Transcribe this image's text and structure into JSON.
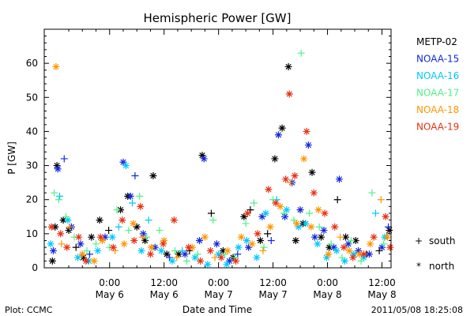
{
  "chart_data": {
    "type": "scatter",
    "title": "Hemispheric Power [GW]",
    "ylabel": "P [GW]",
    "xlabel": "Date and Time",
    "ylim": [
      0,
      70
    ],
    "yticks": [
      0,
      10,
      20,
      30,
      40,
      50,
      60
    ],
    "xlim_hours": [
      -14.4,
      62.0
    ],
    "x_units": "hours from 2011/05/06 00:00 UT",
    "xticks": [
      {
        "hour": 0,
        "time": "0:00",
        "date": "May 6"
      },
      {
        "hour": 12,
        "time": "12:00",
        "date": "May 6"
      },
      {
        "hour": 24,
        "time": "0:00",
        "date": "May 7"
      },
      {
        "hour": 36,
        "time": "12:00",
        "date": "May 7"
      },
      {
        "hour": 48,
        "time": "0:00",
        "date": "May 8"
      },
      {
        "hour": 60,
        "time": "12:00",
        "date": "May 8"
      }
    ],
    "markers": {
      "south": "+",
      "north": "*"
    },
    "marker_legend": [
      {
        "symbol": "+",
        "label": "south"
      },
      {
        "symbol": "*",
        "label": "north"
      }
    ],
    "series": [
      {
        "name": "METP-02",
        "color": "#000000",
        "points": [
          [
            -12.6,
            2,
            "north"
          ],
          [
            -12.0,
            12,
            "north"
          ],
          [
            -11.6,
            30,
            "north"
          ],
          [
            -10.2,
            14,
            "north"
          ],
          [
            -9.0,
            11,
            "north"
          ],
          [
            -7.4,
            6,
            "south"
          ],
          [
            -5.8,
            3,
            "north"
          ],
          [
            -4.0,
            9,
            "north"
          ],
          [
            -2.2,
            14,
            "north"
          ],
          [
            -0.2,
            11,
            "south"
          ],
          [
            2.4,
            17,
            "north"
          ],
          [
            4.0,
            21,
            "north"
          ],
          [
            6.0,
            12,
            "north"
          ],
          [
            7.8,
            8,
            "north"
          ],
          [
            9.6,
            27,
            "north"
          ],
          [
            12.6,
            4,
            "north"
          ],
          [
            15.2,
            4,
            "north"
          ],
          [
            17.6,
            5,
            "south"
          ],
          [
            20.4,
            33,
            "north"
          ],
          [
            22.4,
            16,
            "south"
          ],
          [
            25.0,
            5,
            "north"
          ],
          [
            27.2,
            3,
            "north"
          ],
          [
            29.6,
            15,
            "north"
          ],
          [
            31.0,
            17,
            "south"
          ],
          [
            33.2,
            8,
            "north"
          ],
          [
            34.8,
            10,
            "south"
          ],
          [
            36.4,
            32,
            "north"
          ],
          [
            38.0,
            41,
            "north"
          ],
          [
            39.4,
            59,
            "north"
          ],
          [
            41.0,
            8,
            "north"
          ],
          [
            42.6,
            13,
            "north"
          ],
          [
            44.6,
            28,
            "north"
          ],
          [
            46.6,
            9,
            "north"
          ],
          [
            48.4,
            6,
            "north"
          ],
          [
            50.2,
            20,
            "south"
          ],
          [
            52.0,
            9,
            "north"
          ],
          [
            54.2,
            8,
            "north"
          ],
          [
            56.6,
            4,
            "south"
          ],
          [
            59.4,
            5,
            "south"
          ],
          [
            61.6,
            11,
            "north"
          ]
        ]
      },
      {
        "name": "NOAA-15",
        "color": "#1428dc",
        "points": [
          [
            -12.4,
            5,
            "north"
          ],
          [
            -11.4,
            29,
            "north"
          ],
          [
            -10.0,
            32,
            "south"
          ],
          [
            -8.4,
            12,
            "north"
          ],
          [
            -6.4,
            7,
            "north"
          ],
          [
            -4.4,
            4,
            "south"
          ],
          [
            -1.0,
            9,
            "north"
          ],
          [
            3.0,
            31,
            "north"
          ],
          [
            4.6,
            21,
            "north"
          ],
          [
            5.6,
            27,
            "south"
          ],
          [
            7.4,
            10,
            "north"
          ],
          [
            10.0,
            6,
            "north"
          ],
          [
            13.2,
            3,
            "south"
          ],
          [
            16.6,
            4,
            "north"
          ],
          [
            19.8,
            8,
            "north"
          ],
          [
            20.8,
            32,
            "north"
          ],
          [
            23.6,
            7,
            "north"
          ],
          [
            26.4,
            2,
            "north"
          ],
          [
            28.2,
            4,
            "south"
          ],
          [
            30.6,
            6,
            "north"
          ],
          [
            33.6,
            15,
            "north"
          ],
          [
            35.6,
            8,
            "south"
          ],
          [
            37.2,
            39,
            "north"
          ],
          [
            38.6,
            15,
            "north"
          ],
          [
            40.2,
            25,
            "north"
          ],
          [
            42.0,
            17,
            "north"
          ],
          [
            43.8,
            36,
            "north"
          ],
          [
            45.2,
            9,
            "north"
          ],
          [
            47.2,
            11,
            "north"
          ],
          [
            49.4,
            6,
            "north"
          ],
          [
            50.6,
            26,
            "north"
          ],
          [
            52.6,
            7,
            "north"
          ],
          [
            54.8,
            5,
            "north"
          ],
          [
            57.2,
            4,
            "north"
          ],
          [
            60.0,
            6,
            "north"
          ],
          [
            61.4,
            12,
            "south"
          ]
        ]
      },
      {
        "name": "NOAA-16",
        "color": "#00c8ff",
        "points": [
          [
            -13.0,
            7,
            "north"
          ],
          [
            -11.0,
            21,
            "south"
          ],
          [
            -9.2,
            14,
            "north"
          ],
          [
            -7.0,
            3,
            "north"
          ],
          [
            -4.6,
            2,
            "north"
          ],
          [
            -2.6,
            5,
            "north"
          ],
          [
            0.6,
            9,
            "north"
          ],
          [
            2.0,
            12,
            "south"
          ],
          [
            3.6,
            30,
            "north"
          ],
          [
            5.0,
            19,
            "south"
          ],
          [
            7.0,
            5,
            "north"
          ],
          [
            8.6,
            14,
            "south"
          ],
          [
            11.4,
            5,
            "north"
          ],
          [
            13.8,
            2,
            "north"
          ],
          [
            16.0,
            5,
            "south"
          ],
          [
            18.8,
            3,
            "north"
          ],
          [
            21.6,
            1,
            "north"
          ],
          [
            24.0,
            4,
            "north"
          ],
          [
            25.8,
            1,
            "north"
          ],
          [
            28.4,
            6,
            "north"
          ],
          [
            30.2,
            8,
            "north"
          ],
          [
            32.4,
            3,
            "north"
          ],
          [
            34.4,
            16,
            "north"
          ],
          [
            36.8,
            20,
            "south"
          ],
          [
            39.0,
            17,
            "north"
          ],
          [
            41.6,
            12,
            "north"
          ],
          [
            43.2,
            13,
            "north"
          ],
          [
            45.8,
            7,
            "north"
          ],
          [
            47.8,
            3,
            "north"
          ],
          [
            50.0,
            5,
            "north"
          ],
          [
            51.8,
            2,
            "north"
          ],
          [
            53.8,
            4,
            "north"
          ],
          [
            56.0,
            3,
            "north"
          ],
          [
            58.6,
            16,
            "south"
          ],
          [
            60.6,
            9,
            "north"
          ]
        ]
      },
      {
        "name": "NOAA-17",
        "color": "#50f08c",
        "points": [
          [
            -12.2,
            22,
            "south"
          ],
          [
            -11.2,
            20,
            "south"
          ],
          [
            -9.6,
            15,
            "south"
          ],
          [
            -7.8,
            9,
            "south"
          ],
          [
            -5.0,
            5,
            "south"
          ],
          [
            -3.0,
            7,
            "south"
          ],
          [
            0.0,
            6,
            "south"
          ],
          [
            1.6,
            17,
            "south"
          ],
          [
            4.2,
            11,
            "south"
          ],
          [
            6.6,
            21,
            "south"
          ],
          [
            8.2,
            9,
            "south"
          ],
          [
            11.0,
            11,
            "south"
          ],
          [
            14.4,
            5,
            "south"
          ],
          [
            17.0,
            2,
            "south"
          ],
          [
            19.4,
            4,
            "south"
          ],
          [
            22.8,
            14,
            "south"
          ],
          [
            25.4,
            4,
            "south"
          ],
          [
            27.6,
            3,
            "south"
          ],
          [
            30.0,
            13,
            "south"
          ],
          [
            31.8,
            19,
            "south"
          ],
          [
            34.0,
            6,
            "south"
          ],
          [
            36.0,
            20,
            "south"
          ],
          [
            38.4,
            16,
            "south"
          ],
          [
            40.6,
            14,
            "south"
          ],
          [
            42.2,
            63,
            "south"
          ],
          [
            44.0,
            16,
            "south"
          ],
          [
            46.2,
            12,
            "south"
          ],
          [
            48.8,
            7,
            "south"
          ],
          [
            51.2,
            3,
            "south"
          ],
          [
            53.2,
            8,
            "south"
          ],
          [
            55.4,
            2,
            "south"
          ],
          [
            57.8,
            22,
            "south"
          ],
          [
            60.4,
            7,
            "south"
          ]
        ]
      },
      {
        "name": "NOAA-18",
        "color": "#ff9600",
        "points": [
          [
            -11.8,
            59,
            "north"
          ],
          [
            -10.6,
            7,
            "south"
          ],
          [
            -8.8,
            12,
            "south"
          ],
          [
            -6.0,
            4,
            "north"
          ],
          [
            -3.4,
            2,
            "north"
          ],
          [
            -1.6,
            8,
            "north"
          ],
          [
            1.2,
            5,
            "south"
          ],
          [
            3.2,
            7,
            "north"
          ],
          [
            5.2,
            13,
            "north"
          ],
          [
            7.2,
            9,
            "south"
          ],
          [
            9.2,
            6,
            "north"
          ],
          [
            12.0,
            8,
            "north"
          ],
          [
            14.8,
            3,
            "south"
          ],
          [
            18.2,
            6,
            "north"
          ],
          [
            21.0,
            9,
            "north"
          ],
          [
            23.2,
            3,
            "south"
          ],
          [
            26.0,
            5,
            "north"
          ],
          [
            29.0,
            9,
            "north"
          ],
          [
            31.4,
            7,
            "north"
          ],
          [
            33.8,
            5,
            "south"
          ],
          [
            35.4,
            12,
            "north"
          ],
          [
            37.6,
            18,
            "north"
          ],
          [
            39.8,
            25,
            "south"
          ],
          [
            41.2,
            13,
            "north"
          ],
          [
            42.8,
            32,
            "north"
          ],
          [
            44.4,
            12,
            "north"
          ],
          [
            46.0,
            17,
            "north"
          ],
          [
            48.2,
            4,
            "north"
          ],
          [
            50.8,
            9,
            "south"
          ],
          [
            52.8,
            5,
            "north"
          ],
          [
            55.0,
            4,
            "north"
          ],
          [
            57.4,
            7,
            "north"
          ],
          [
            59.8,
            20,
            "south"
          ],
          [
            61.2,
            9,
            "north"
          ]
        ]
      },
      {
        "name": "NOAA-19",
        "color": "#e63214",
        "points": [
          [
            -12.8,
            12,
            "north"
          ],
          [
            -10.8,
            10,
            "north"
          ],
          [
            -9.4,
            6,
            "north"
          ],
          [
            -6.8,
            9,
            "north"
          ],
          [
            -5.2,
            2,
            "north"
          ],
          [
            -2.0,
            9,
            "north"
          ],
          [
            0.8,
            6,
            "north"
          ],
          [
            2.8,
            14,
            "north"
          ],
          [
            5.4,
            8,
            "north"
          ],
          [
            6.8,
            18,
            "north"
          ],
          [
            9.0,
            4,
            "north"
          ],
          [
            11.8,
            7,
            "north"
          ],
          [
            14.2,
            14,
            "north"
          ],
          [
            17.4,
            6,
            "north"
          ],
          [
            20.0,
            2,
            "north"
          ],
          [
            22.2,
            5,
            "north"
          ],
          [
            24.6,
            3,
            "north"
          ],
          [
            27.8,
            2,
            "north"
          ],
          [
            30.4,
            16,
            "north"
          ],
          [
            32.6,
            10,
            "north"
          ],
          [
            35.0,
            23,
            "north"
          ],
          [
            36.6,
            19,
            "north"
          ],
          [
            38.8,
            26,
            "north"
          ],
          [
            39.6,
            51,
            "north"
          ],
          [
            40.8,
            27,
            "north"
          ],
          [
            43.4,
            40,
            "north"
          ],
          [
            45.0,
            22,
            "north"
          ],
          [
            47.4,
            16,
            "north"
          ],
          [
            49.6,
            12,
            "north"
          ],
          [
            51.6,
            6,
            "north"
          ],
          [
            53.6,
            3,
            "north"
          ],
          [
            56.0,
            4,
            "north"
          ],
          [
            58.2,
            9,
            "north"
          ],
          [
            60.8,
            15,
            "north"
          ],
          [
            61.8,
            6,
            "north"
          ]
        ]
      }
    ]
  },
  "footer": {
    "left": "Plot: CCMC",
    "right": "2011/05/08 18:25:08"
  }
}
